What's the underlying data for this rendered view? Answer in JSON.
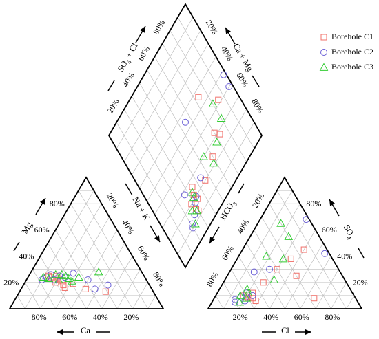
{
  "chart_data": {
    "type": "scatter",
    "subtype": "piper-trilinear",
    "title": "",
    "ticks": [
      "20%",
      "40%",
      "60%",
      "80%"
    ],
    "axes": {
      "cation_left": "Mg",
      "cation_bottom": "Ca",
      "cation_right": "Na + K",
      "anion_left": "HCO",
      "anion_left_sub": "3",
      "anion_bottom": "Cl",
      "anion_right": "SO",
      "anion_right_sub": "4",
      "diamond_left": "SO",
      "diamond_left_sub": "4",
      "diamond_left_suffix": " + Cl",
      "diamond_right": "Ca + Mg"
    },
    "legend": {
      "placement": "top-right",
      "entries": [
        {
          "name": "Borehole C1",
          "marker": "square",
          "color": "#f0706a"
        },
        {
          "name": "Borehole C2",
          "marker": "circle",
          "color": "#6a5fd6"
        },
        {
          "name": "Borehole C3",
          "marker": "triangle",
          "color": "#33cc33"
        }
      ]
    },
    "units": "percent of meq/L",
    "series": [
      {
        "name": "Borehole C1",
        "samples": [
          {
            "mg": 25,
            "na": 13,
            "so4": 8,
            "cl": 22
          },
          {
            "mg": 24,
            "na": 15,
            "so4": 9,
            "cl": 20
          },
          {
            "mg": 20,
            "na": 20,
            "so4": 10,
            "cl": 18
          },
          {
            "mg": 22,
            "na": 22,
            "so4": 8,
            "cl": 25
          },
          {
            "mg": 18,
            "na": 26,
            "so4": 12,
            "cl": 23
          },
          {
            "mg": 16,
            "na": 28,
            "so4": 38,
            "cl": 35
          },
          {
            "mg": 21,
            "na": 24,
            "so4": 30,
            "cl": 30
          },
          {
            "mg": 19,
            "na": 32,
            "so4": 25,
            "cl": 45
          },
          {
            "mg": 15,
            "na": 42,
            "so4": 45,
            "cl": 40
          },
          {
            "mg": 13,
            "na": 56,
            "so4": 8,
            "cl": 65
          },
          {
            "mg": 25,
            "na": 18,
            "so4": 6,
            "cl": 28
          },
          {
            "mg": 23,
            "na": 20,
            "so4": 20,
            "cl": 26
          }
        ]
      },
      {
        "name": "Borehole C2",
        "samples": [
          {
            "mg": 22,
            "na": 10,
            "so4": 5,
            "cl": 15
          },
          {
            "mg": 24,
            "na": 12,
            "so4": 7,
            "cl": 14
          },
          {
            "mg": 26,
            "na": 14,
            "so4": 9,
            "cl": 17
          },
          {
            "mg": 22,
            "na": 18,
            "so4": 12,
            "cl": 19
          },
          {
            "mg": 25,
            "na": 20,
            "so4": 10,
            "cl": 24
          },
          {
            "mg": 27,
            "na": 28,
            "so4": 6,
            "cl": 21
          },
          {
            "mg": 22,
            "na": 40,
            "so4": 42,
            "cl": 55
          },
          {
            "mg": 15,
            "na": 48,
            "so4": 68,
            "cl": 30
          },
          {
            "mg": 18,
            "na": 55,
            "so4": 30,
            "cl": 25
          },
          {
            "mg": 24,
            "na": 24,
            "so4": 28,
            "cl": 16
          }
        ]
      },
      {
        "name": "Borehole C3",
        "samples": [
          {
            "mg": 24,
            "na": 10,
            "so4": 5,
            "cl": 18
          },
          {
            "mg": 23,
            "na": 14,
            "so4": 8,
            "cl": 21
          },
          {
            "mg": 26,
            "na": 17,
            "so4": 10,
            "cl": 16
          },
          {
            "mg": 22,
            "na": 21,
            "so4": 12,
            "cl": 20
          },
          {
            "mg": 25,
            "na": 24,
            "so4": 15,
            "cl": 18
          },
          {
            "mg": 23,
            "na": 27,
            "so4": 38,
            "cl": 30
          },
          {
            "mg": 28,
            "na": 44,
            "so4": 65,
            "cl": 15
          },
          {
            "mg": 24,
            "na": 33,
            "so4": 55,
            "cl": 25
          },
          {
            "mg": 21,
            "na": 30,
            "so4": 22,
            "cl": 32
          },
          {
            "mg": 26,
            "na": 21,
            "so4": 40,
            "cl": 18
          }
        ]
      }
    ]
  }
}
